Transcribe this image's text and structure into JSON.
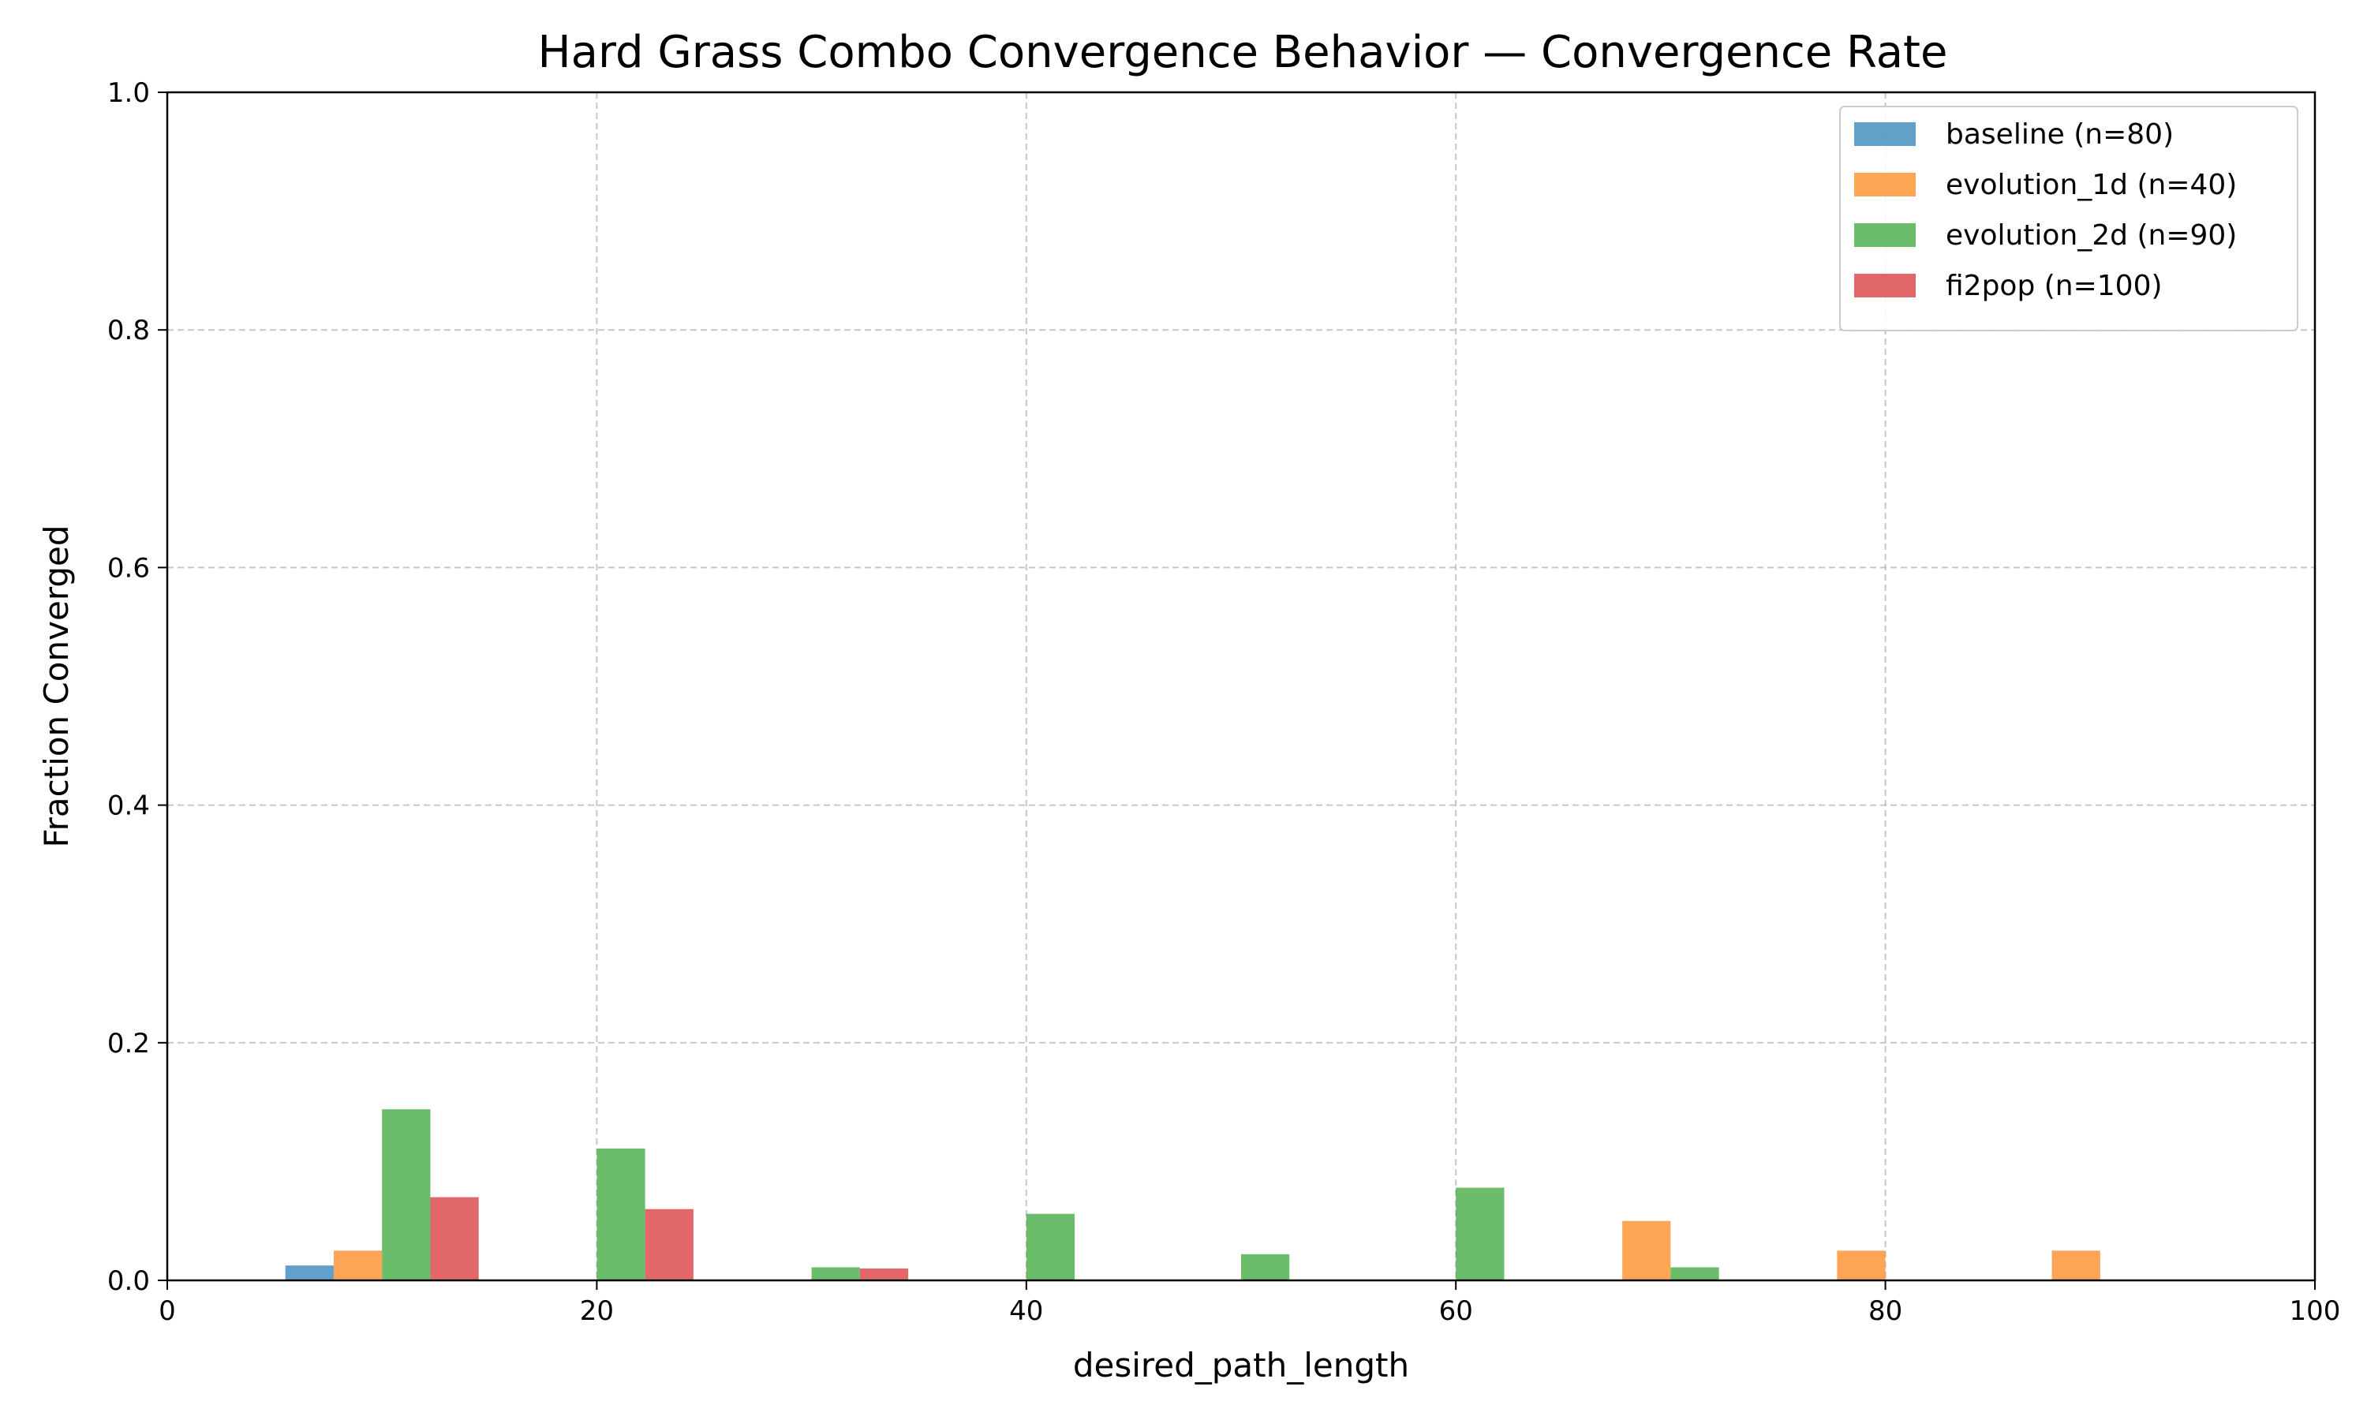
{
  "chart_data": {
    "type": "bar",
    "title": "Hard Grass Combo Convergence Behavior — Convergence Rate",
    "xlabel": "desired_path_length",
    "ylabel": "Fraction Converged",
    "xlim": [
      0,
      100
    ],
    "ylim": [
      0,
      1.0
    ],
    "x_ticks": [
      "0",
      "20",
      "40",
      "60",
      "80",
      "100"
    ],
    "y_ticks": [
      "0.0",
      "0.2",
      "0.4",
      "0.6",
      "0.8",
      "1.0"
    ],
    "grid": true,
    "legend_position": "top-right",
    "bar_group_width": 9,
    "x": [
      10,
      20,
      30,
      40,
      50,
      60,
      70,
      80,
      90
    ],
    "series": [
      {
        "name": "baseline (n=80)",
        "color": "#1f77b4",
        "values": [
          0.0125,
          0,
          0,
          0,
          0,
          0,
          0,
          0,
          0
        ]
      },
      {
        "name": "evolution_1d (n=40)",
        "color": "#ff7f0e",
        "values": [
          0.025,
          0,
          0,
          0,
          0,
          0,
          0.05,
          0.025,
          0.025
        ]
      },
      {
        "name": "evolution_2d (n=90)",
        "color": "#2ca02c",
        "values": [
          0.144,
          0.111,
          0.011,
          0.056,
          0.022,
          0.078,
          0.011,
          0,
          0
        ]
      },
      {
        "name": "fi2pop (n=100)",
        "color": "#d62728",
        "values": [
          0.07,
          0.06,
          0.01,
          0,
          0,
          0,
          0,
          0,
          0
        ]
      }
    ]
  }
}
